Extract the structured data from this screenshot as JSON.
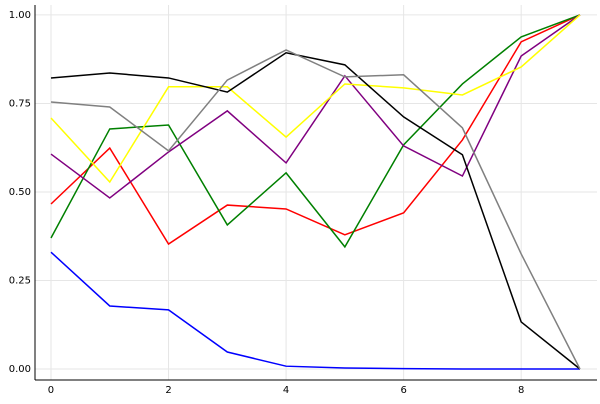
{
  "chart_data": {
    "type": "line",
    "x": [
      0,
      1,
      2,
      3,
      4,
      5,
      6,
      7,
      8,
      9
    ],
    "series": [
      {
        "color": "#0000ff",
        "values": [
          0.33,
          0.178,
          0.167,
          0.048,
          0.008,
          0.003,
          0.001,
          0.0,
          0.0,
          0.0
        ]
      },
      {
        "color": "#ff0000",
        "values": [
          0.466,
          0.624,
          0.353,
          0.463,
          0.452,
          0.379,
          0.441,
          0.647,
          0.924,
          1.0
        ]
      },
      {
        "color": "#008000",
        "values": [
          0.37,
          0.678,
          0.689,
          0.407,
          0.554,
          0.345,
          0.633,
          0.805,
          0.938,
          1.0
        ]
      },
      {
        "color": "#800080",
        "values": [
          0.607,
          0.483,
          0.613,
          0.729,
          0.582,
          0.828,
          0.63,
          0.545,
          0.884,
          1.0
        ]
      },
      {
        "color": "#ffff00",
        "values": [
          0.709,
          0.528,
          0.797,
          0.797,
          0.655,
          0.805,
          0.794,
          0.774,
          0.853,
          1.0
        ]
      },
      {
        "color": "#000000",
        "values": [
          0.822,
          0.836,
          0.822,
          0.782,
          0.893,
          0.859,
          0.712,
          0.605,
          0.133,
          0.0
        ]
      },
      {
        "color": "#808080",
        "values": [
          0.754,
          0.74,
          0.616,
          0.816,
          0.901,
          0.825,
          0.831,
          0.681,
          0.325,
          0.0
        ]
      }
    ],
    "xlim": [
      -0.272,
      9.29
    ],
    "xticks": [
      0,
      2,
      4,
      6,
      8
    ],
    "ylim": [
      -0.031,
      1.028
    ],
    "yticks": [
      {
        "value": 0,
        "label": "0.00"
      },
      {
        "value": 0.25,
        "label": "0.25"
      },
      {
        "value": 0.5,
        "label": "0.50"
      },
      {
        "value": 0.75,
        "label": "0.75"
      },
      {
        "value": 1,
        "label": "1.00"
      }
    ],
    "grid": true
  }
}
